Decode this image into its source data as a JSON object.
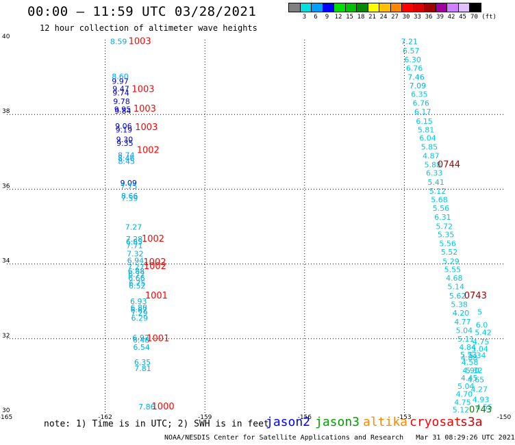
{
  "header": {
    "title": "00:00 – 11:59 UTC 03/28/2021",
    "subtitle": "12 hour collection of altimeter wave heights"
  },
  "colorbar": {
    "colors": [
      "#808080",
      "#00e0e0",
      "#00a0ff",
      "#0000ff",
      "#00e000",
      "#00c000",
      "#008800",
      "#ffff00",
      "#ffc000",
      "#ff8800",
      "#ff0000",
      "#dd0000",
      "#a00000",
      "#a000a0",
      "#d080ff",
      "#e0c0ff",
      "#000000"
    ],
    "labels": [
      "3",
      "6",
      "9",
      "12",
      "15",
      "18",
      "21",
      "24",
      "27",
      "30",
      "33",
      "36",
      "39",
      "42",
      "45",
      "70 (ft)"
    ]
  },
  "chart_data": {
    "type": "scatter",
    "title": "00:00 – 11:59 UTC 03/28/2021",
    "xlabel": "",
    "ylabel": "",
    "xlim": [
      -165,
      -150
    ],
    "ylim": [
      30,
      40
    ],
    "x_ticks": [
      "-165",
      "-162",
      "-159",
      "-156",
      "-153",
      "-150"
    ],
    "y_ticks": [
      "30",
      "32",
      "34",
      "36",
      "38",
      "40"
    ],
    "grid": true,
    "points": [
      {
        "x": -161.85,
        "y": 39.88,
        "label": "8.59",
        "color": "#00b0e0"
      },
      {
        "x": -161.8,
        "y": 38.95,
        "label": "8.60",
        "color": "#00a0ff"
      },
      {
        "x": -161.8,
        "y": 38.82,
        "label": "9.97",
        "color": "#0000cc"
      },
      {
        "x": -161.78,
        "y": 38.62,
        "label": "9.47",
        "color": "#0000cc"
      },
      {
        "x": -161.78,
        "y": 38.51,
        "label": "9.74",
        "color": "#0000cc"
      },
      {
        "x": -161.76,
        "y": 38.28,
        "label": "9.78",
        "color": "#0000cc"
      },
      {
        "x": -161.73,
        "y": 38.07,
        "label": "9.95",
        "color": "#0000cc"
      },
      {
        "x": -161.72,
        "y": 38.02,
        "label": "9.84",
        "color": "#0000cc"
      },
      {
        "x": -161.7,
        "y": 37.62,
        "label": "9.06",
        "color": "#0000cc"
      },
      {
        "x": -161.69,
        "y": 37.52,
        "label": "9.19",
        "color": "#0000cc"
      },
      {
        "x": -161.67,
        "y": 37.26,
        "label": "9.30",
        "color": "#0000cc"
      },
      {
        "x": -161.66,
        "y": 37.16,
        "label": "9.35",
        "color": "#0000cc"
      },
      {
        "x": -161.62,
        "y": 36.84,
        "label": "8.74",
        "color": "#00a0ff"
      },
      {
        "x": -161.62,
        "y": 36.76,
        "label": "8.46",
        "color": "#00a0ff"
      },
      {
        "x": -161.61,
        "y": 36.68,
        "label": "8.45",
        "color": "#00a0ff"
      },
      {
        "x": -161.55,
        "y": 36.1,
        "label": "9.09",
        "color": "#0000cc"
      },
      {
        "x": -161.54,
        "y": 36.01,
        "label": "7.75",
        "color": "#00b0e0"
      },
      {
        "x": -161.52,
        "y": 35.75,
        "label": "8.66",
        "color": "#00a0ff"
      },
      {
        "x": -161.52,
        "y": 35.69,
        "label": "7.59",
        "color": "#00b0e0"
      },
      {
        "x": -161.4,
        "y": 34.92,
        "label": "7.27",
        "color": "#00b0e0"
      },
      {
        "x": -161.38,
        "y": 34.6,
        "label": "7.28",
        "color": "#00b0e0"
      },
      {
        "x": -161.38,
        "y": 34.52,
        "label": "6.85",
        "color": "#00b0e0"
      },
      {
        "x": -161.37,
        "y": 34.42,
        "label": "7.71",
        "color": "#00b0e0"
      },
      {
        "x": -161.35,
        "y": 34.2,
        "label": "7.32",
        "color": "#00b0e0"
      },
      {
        "x": -161.34,
        "y": 34.02,
        "label": "6.94",
        "color": "#00b0e0"
      },
      {
        "x": -161.33,
        "y": 33.85,
        "label": "7.27",
        "color": "#00b0e0"
      },
      {
        "x": -161.32,
        "y": 33.74,
        "label": "6.88",
        "color": "#00b0e0"
      },
      {
        "x": -161.31,
        "y": 33.65,
        "label": "6.72",
        "color": "#00b0e0"
      },
      {
        "x": -161.31,
        "y": 33.55,
        "label": "6.66",
        "color": "#00b0e0"
      },
      {
        "x": -161.29,
        "y": 33.42,
        "label": "6.75",
        "color": "#00b0e0"
      },
      {
        "x": -161.29,
        "y": 33.34,
        "label": "6.52",
        "color": "#00b0e0"
      },
      {
        "x": -161.25,
        "y": 32.93,
        "label": "6.93",
        "color": "#00b0e0"
      },
      {
        "x": -161.24,
        "y": 32.77,
        "label": "6.88",
        "color": "#00b0e0"
      },
      {
        "x": -161.24,
        "y": 32.7,
        "label": "6.67",
        "color": "#00b0e0"
      },
      {
        "x": -161.23,
        "y": 32.62,
        "label": "7.29",
        "color": "#00b0e0"
      },
      {
        "x": -161.22,
        "y": 32.48,
        "label": "6.29",
        "color": "#00b0e0"
      },
      {
        "x": -161.18,
        "y": 31.96,
        "label": "6.92",
        "color": "#00b0e0"
      },
      {
        "x": -161.17,
        "y": 31.9,
        "label": "6.48",
        "color": "#00b0e0"
      },
      {
        "x": -161.16,
        "y": 31.7,
        "label": "6.54",
        "color": "#00b0e0"
      },
      {
        "x": -161.13,
        "y": 31.3,
        "label": "6.35",
        "color": "#00b0e0"
      },
      {
        "x": -161.12,
        "y": 31.14,
        "label": "7.81",
        "color": "#00b0e0"
      },
      {
        "x": -161.0,
        "y": 30.11,
        "label": "7.86",
        "color": "#00b0e0"
      },
      {
        "x": -161.3,
        "y": 39.88,
        "label": "1003",
        "color": "#ff0000"
      },
      {
        "x": -161.2,
        "y": 38.6,
        "label": "1003",
        "color": "#ff0000"
      },
      {
        "x": -161.15,
        "y": 38.08,
        "label": "1003",
        "color": "#ff0000"
      },
      {
        "x": -161.1,
        "y": 37.58,
        "label": "1003",
        "color": "#ff0000"
      },
      {
        "x": -161.05,
        "y": 36.97,
        "label": "1002",
        "color": "#ff0000"
      },
      {
        "x": -160.9,
        "y": 34.6,
        "label": "1002",
        "color": "#ff0000"
      },
      {
        "x": -160.85,
        "y": 33.97,
        "label": "1002",
        "color": "#ff0000"
      },
      {
        "x": -160.84,
        "y": 33.86,
        "label": "1002",
        "color": "#ff0000"
      },
      {
        "x": -160.8,
        "y": 33.08,
        "label": "1001",
        "color": "#ff0000"
      },
      {
        "x": -160.75,
        "y": 31.93,
        "label": "1001",
        "color": "#ff0000"
      },
      {
        "x": -160.6,
        "y": 30.11,
        "label": "1000",
        "color": "#ff0000"
      },
      {
        "x": -153.1,
        "y": 39.88,
        "label": "7.21",
        "color": "#00b0e0"
      },
      {
        "x": -153.05,
        "y": 39.63,
        "label": "6.57",
        "color": "#00c8e0"
      },
      {
        "x": -153.0,
        "y": 39.4,
        "label": "6.30",
        "color": "#00c8e0"
      },
      {
        "x": -152.95,
        "y": 39.17,
        "label": "6.76",
        "color": "#00c8e0"
      },
      {
        "x": -152.9,
        "y": 38.93,
        "label": "7.46",
        "color": "#00b0e0"
      },
      {
        "x": -152.85,
        "y": 38.7,
        "label": "7.09",
        "color": "#00b0e0"
      },
      {
        "x": -152.8,
        "y": 38.47,
        "label": "6.35",
        "color": "#00c8e0"
      },
      {
        "x": -152.75,
        "y": 38.23,
        "label": "6.76",
        "color": "#00c8e0"
      },
      {
        "x": -152.7,
        "y": 38.0,
        "label": "6.17",
        "color": "#00c8e0"
      },
      {
        "x": -152.65,
        "y": 37.75,
        "label": "6.15",
        "color": "#00c8e0"
      },
      {
        "x": -152.6,
        "y": 37.52,
        "label": "5.81",
        "color": "#00c8e0"
      },
      {
        "x": -152.55,
        "y": 37.3,
        "label": "6.04",
        "color": "#00c8e0"
      },
      {
        "x": -152.5,
        "y": 37.06,
        "label": "5.85",
        "color": "#00c8e0"
      },
      {
        "x": -152.45,
        "y": 36.82,
        "label": "4.87",
        "color": "#00c8e0"
      },
      {
        "x": -152.4,
        "y": 36.58,
        "label": "5.88",
        "color": "#00c8e0"
      },
      {
        "x": -152.35,
        "y": 36.36,
        "label": "6.33",
        "color": "#00c8e0"
      },
      {
        "x": -152.3,
        "y": 36.12,
        "label": "5.41",
        "color": "#00c8e0"
      },
      {
        "x": -152.25,
        "y": 35.88,
        "label": "5.12",
        "color": "#00c8e0"
      },
      {
        "x": -152.2,
        "y": 35.65,
        "label": "5.68",
        "color": "#00c8e0"
      },
      {
        "x": -152.15,
        "y": 35.42,
        "label": "5.56",
        "color": "#00c8e0"
      },
      {
        "x": -152.1,
        "y": 35.18,
        "label": "6.31",
        "color": "#00c8e0"
      },
      {
        "x": -152.05,
        "y": 34.94,
        "label": "5.72",
        "color": "#00c8e0"
      },
      {
        "x": -152.0,
        "y": 34.72,
        "label": "5.35",
        "color": "#00c8e0"
      },
      {
        "x": -151.95,
        "y": 34.48,
        "label": "5.56",
        "color": "#00c8e0"
      },
      {
        "x": -151.9,
        "y": 34.25,
        "label": "5.52",
        "color": "#00c8e0"
      },
      {
        "x": -151.85,
        "y": 34.0,
        "label": "5.29",
        "color": "#00c8e0"
      },
      {
        "x": -151.8,
        "y": 33.78,
        "label": "5.55",
        "color": "#00c8e0"
      },
      {
        "x": -151.75,
        "y": 33.55,
        "label": "4.68",
        "color": "#00c8e0"
      },
      {
        "x": -151.7,
        "y": 33.32,
        "label": "5.14",
        "color": "#00c8e0"
      },
      {
        "x": -151.65,
        "y": 33.08,
        "label": "5.62",
        "color": "#00c8e0"
      },
      {
        "x": -151.6,
        "y": 32.85,
        "label": "5.38",
        "color": "#00c8e0"
      },
      {
        "x": -151.55,
        "y": 32.62,
        "label": "4.20",
        "color": "#00c8e0"
      },
      {
        "x": -151.5,
        "y": 32.38,
        "label": "4.77",
        "color": "#00c8e0"
      },
      {
        "x": -151.45,
        "y": 32.15,
        "label": "5.04",
        "color": "#00c8e0"
      },
      {
        "x": -151.4,
        "y": 31.92,
        "label": "5.11",
        "color": "#00c8e0"
      },
      {
        "x": -151.35,
        "y": 31.7,
        "label": "4.84",
        "color": "#00c8e0"
      },
      {
        "x": -151.32,
        "y": 31.5,
        "label": "5.53",
        "color": "#00c8e0"
      },
      {
        "x": -151.3,
        "y": 31.42,
        "label": "4.88",
        "color": "#00c8e0"
      },
      {
        "x": -151.28,
        "y": 31.3,
        "label": "4.58",
        "color": "#00c8e0"
      },
      {
        "x": -151.25,
        "y": 31.08,
        "label": "4.90",
        "color": "#00c8e0"
      },
      {
        "x": -151.15,
        "y": 31.08,
        "label": "5.32",
        "color": "#00c8e0"
      },
      {
        "x": -151.3,
        "y": 30.88,
        "label": "4.45",
        "color": "#00c8e0"
      },
      {
        "x": -151.4,
        "y": 30.66,
        "label": "5.04",
        "color": "#00c8e0"
      },
      {
        "x": -151.45,
        "y": 30.45,
        "label": "4.70",
        "color": "#00c8e0"
      },
      {
        "x": -151.5,
        "y": 30.23,
        "label": "4.75",
        "color": "#00c8e0"
      },
      {
        "x": -151.55,
        "y": 30.03,
        "label": "5.12",
        "color": "#00c8e0"
      },
      {
        "x": -151.1,
        "y": 30.83,
        "label": "4.65",
        "color": "#00c8e0"
      },
      {
        "x": -151.0,
        "y": 30.58,
        "label": "4.27",
        "color": "#00c8e0"
      },
      {
        "x": -150.95,
        "y": 30.3,
        "label": "4.93",
        "color": "#00c8e0"
      },
      {
        "x": -150.85,
        "y": 30.1,
        "label": "4.55",
        "color": "#00c8e0"
      },
      {
        "x": -150.95,
        "y": 31.85,
        "label": "4.75",
        "color": "#00c8e0"
      },
      {
        "x": -150.98,
        "y": 31.66,
        "label": "5.04",
        "color": "#00c8e0"
      },
      {
        "x": -151.05,
        "y": 31.48,
        "label": "5.34",
        "color": "#00c8e0"
      },
      {
        "x": -150.88,
        "y": 32.1,
        "label": "5.42",
        "color": "#00c8e0"
      },
      {
        "x": -150.85,
        "y": 32.3,
        "label": "6.0",
        "color": "#00c8e0"
      },
      {
        "x": -150.8,
        "y": 32.65,
        "label": "5",
        "color": "#00c8e0"
      },
      {
        "x": -152.0,
        "y": 36.58,
        "label": "0744",
        "color": "#a00000"
      },
      {
        "x": -151.2,
        "y": 33.08,
        "label": "0743",
        "color": "#a00000"
      },
      {
        "x": -151.05,
        "y": 30.03,
        "label": "0743",
        "color": "#008800"
      }
    ]
  },
  "legend": {
    "items": [
      {
        "label": "jason2",
        "color": "#0000ff"
      },
      {
        "label": "jason3",
        "color": "#00a000"
      },
      {
        "label": "altika",
        "color": "#ff8800"
      },
      {
        "label": "cryosat",
        "color": "#ff0000"
      },
      {
        "label": "s3a",
        "color": "#dd0000"
      }
    ]
  },
  "note": "note: 1) Time is in UTC; 2) SWH is in feet",
  "footer": {
    "credit": "NOAA/NESDIS Center for Satellite Applications and Research",
    "timestamp": "Mar 31 08:29:26 UTC 2021"
  }
}
